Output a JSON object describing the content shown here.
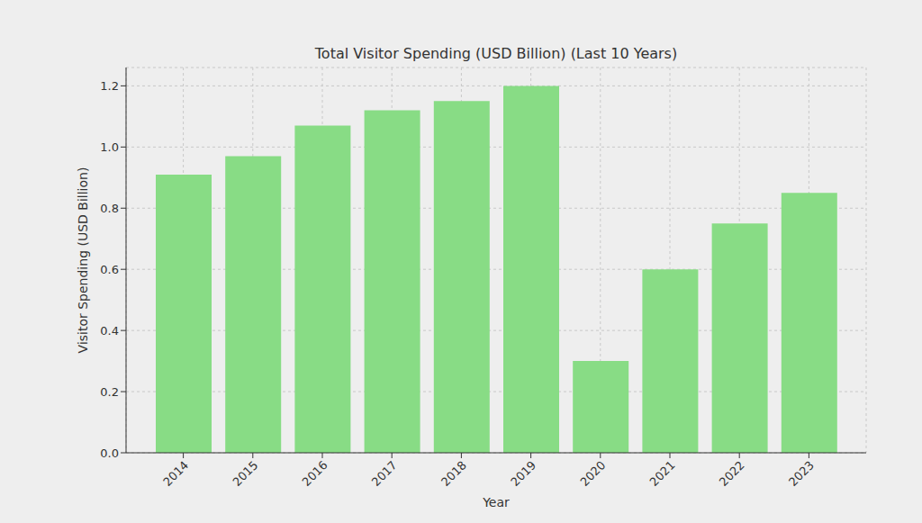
{
  "chart_data": {
    "type": "bar",
    "title": "Total Visitor Spending (USD Billion) (Last 10 Years)",
    "x_label": "Year",
    "y_label": "Visitor Spending (USD Billion)",
    "categories": [
      "2014",
      "2015",
      "2016",
      "2017",
      "2018",
      "2019",
      "2020",
      "2021",
      "2022",
      "2023"
    ],
    "values": [
      0.91,
      0.97,
      1.07,
      1.12,
      1.15,
      1.2,
      0.3,
      0.6,
      0.75,
      0.85
    ],
    "color": "#88dc85",
    "ylim": [
      0,
      1.26
    ],
    "yticks": [
      {
        "value": 0,
        "label": "0.0"
      },
      0.2,
      0.4,
      0.6,
      0.8,
      {
        "value": 1,
        "label": "1.0"
      },
      1.2
    ],
    "grid": true
  }
}
